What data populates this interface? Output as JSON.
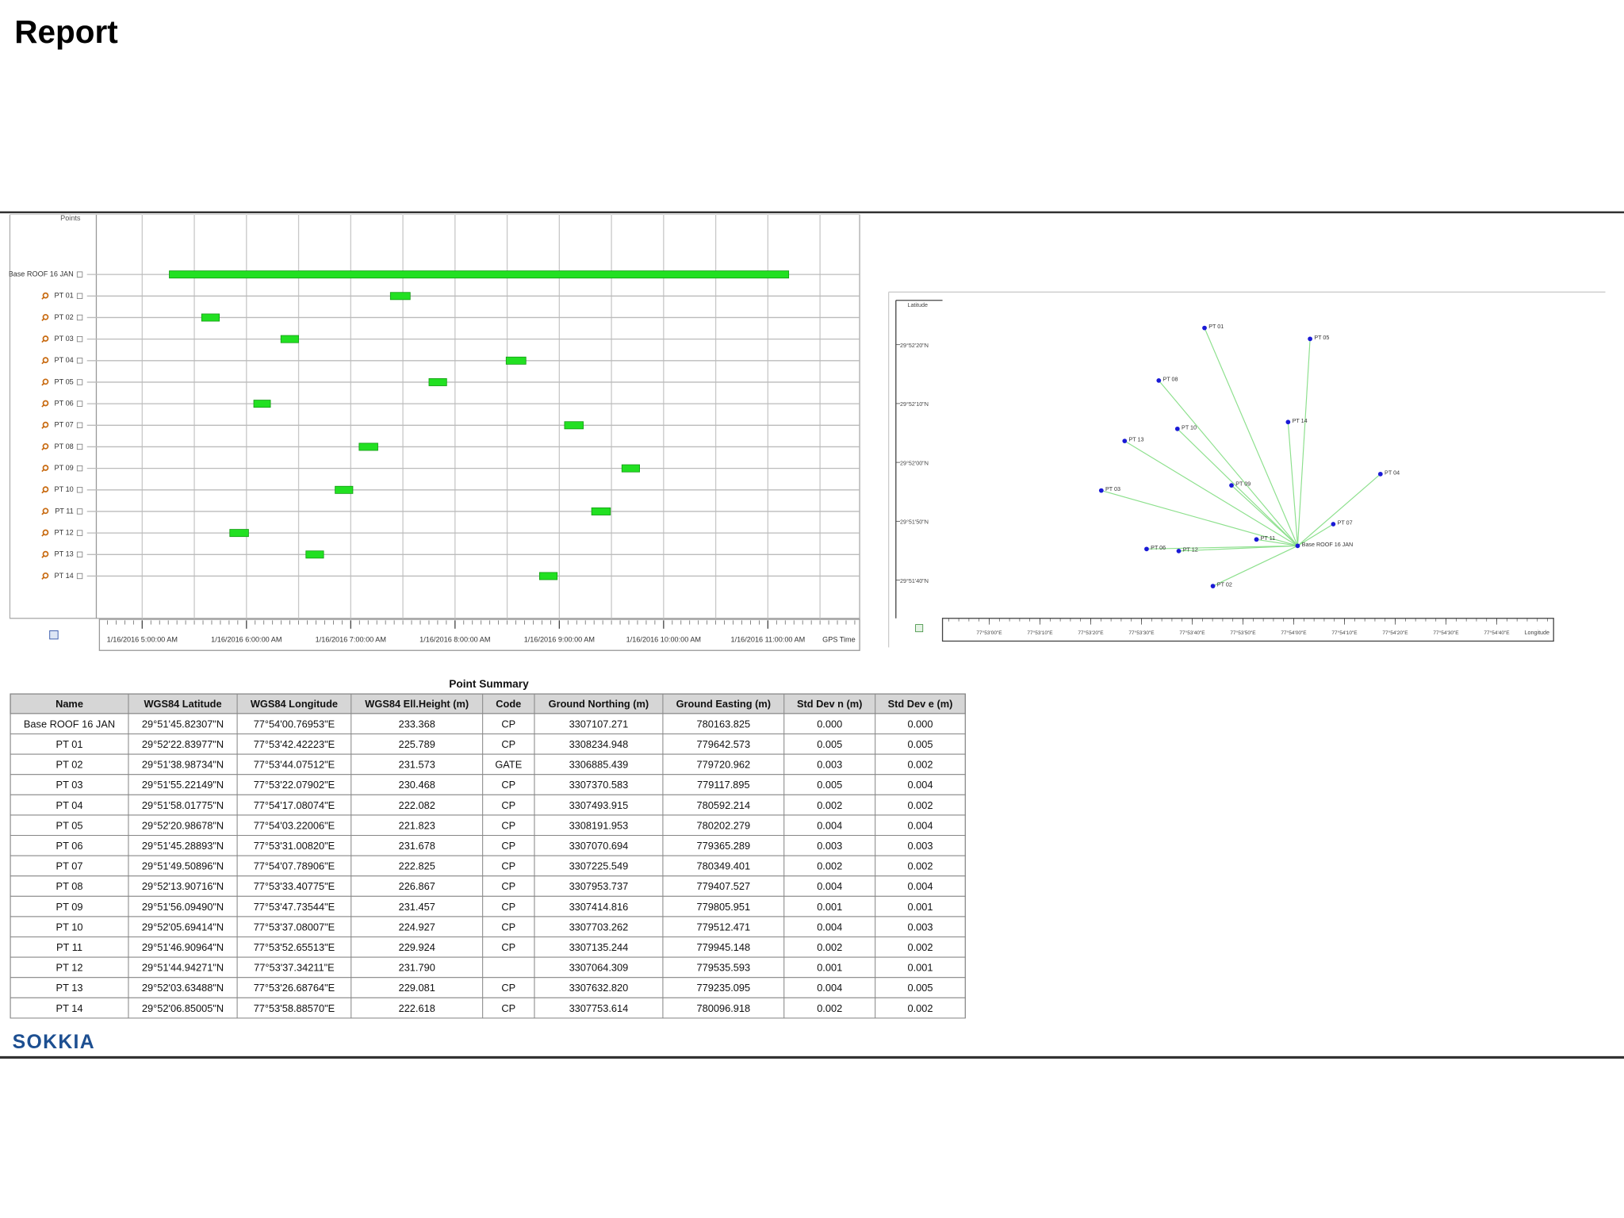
{
  "header": {
    "title": "Report"
  },
  "chart_data": [
    {
      "type": "gantt",
      "y_label": "Points",
      "x_label": "GPS Time",
      "categories": [
        "Base ROOF 16 JAN",
        "PT 01",
        "PT 02",
        "PT 03",
        "PT 04",
        "PT 05",
        "PT 06",
        "PT 07",
        "PT 08",
        "PT 09",
        "PT 10",
        "PT 11",
        "PT 12",
        "PT 13",
        "PT 14"
      ],
      "starts": [
        5.26,
        7.38,
        5.57,
        6.33,
        8.49,
        7.75,
        6.07,
        9.05,
        7.08,
        9.6,
        6.85,
        9.31,
        5.84,
        6.57,
        8.81
      ],
      "ends": [
        11.2,
        7.57,
        5.74,
        6.5,
        8.68,
        7.92,
        6.23,
        9.23,
        7.26,
        9.77,
        7.02,
        9.49,
        6.02,
        6.74,
        8.98
      ],
      "color": "#22e022",
      "xlim": [
        4.59,
        11.88
      ],
      "xticks": [
        {
          "value": 5,
          "label": "1/16/2016 5:00:00 AM"
        },
        {
          "value": 6,
          "label": "1/16/2016 6:00:00 AM"
        },
        {
          "value": 7,
          "label": "1/16/2016 7:00:00 AM"
        },
        {
          "value": 8,
          "label": "1/16/2016 8:00:00 AM"
        },
        {
          "value": 9,
          "label": "1/16/2016 9:00:00 AM"
        },
        {
          "value": 10,
          "label": "1/16/2016 10:00:00 AM"
        },
        {
          "value": 11,
          "label": "1/16/2016 11:00:00 AM"
        }
      ],
      "grid": true
    },
    {
      "type": "scatter",
      "y_label": "Latitude",
      "x_label": "Longitude",
      "labels": [
        "Base ROOF 16 JAN",
        "PT 01",
        "PT 02",
        "PT 03",
        "PT 04",
        "PT 05",
        "PT 06",
        "PT 07",
        "PT 08",
        "PT 09",
        "PT 10",
        "PT 11",
        "PT 12",
        "PT 13",
        "PT 14"
      ],
      "x": [
        77.900214,
        77.895117,
        77.895576,
        77.889466,
        77.904745,
        77.900894,
        77.891946,
        77.902164,
        77.892613,
        77.896593,
        77.893633,
        77.897959,
        77.893706,
        77.890746,
        77.89969
      ],
      "y": [
        29.862729,
        29.873011,
        29.86083,
        29.865339,
        29.866116,
        29.872497,
        29.86258,
        29.863753,
        29.87053,
        29.865582,
        29.868249,
        29.86303,
        29.862484,
        29.867677,
        29.86857
      ],
      "color": "#1a1ad6",
      "line_color": "#8de08d",
      "xlim": [
        77.880889,
        77.914222
      ],
      "ylim": [
        29.85965,
        29.874167
      ],
      "xticks": [
        {
          "value": 77.883333,
          "label": "77°53'00\"E"
        },
        {
          "value": 77.886111,
          "label": "77°53'10\"E"
        },
        {
          "value": 77.888889,
          "label": "77°53'20\"E"
        },
        {
          "value": 77.891667,
          "label": "77°53'30\"E"
        },
        {
          "value": 77.894444,
          "label": "77°53'40\"E"
        },
        {
          "value": 77.897222,
          "label": "77°53'50\"E"
        },
        {
          "value": 77.9,
          "label": "77°54'00\"E"
        },
        {
          "value": 77.902778,
          "label": "77°54'10\"E"
        },
        {
          "value": 77.905556,
          "label": "77°54'20\"E"
        },
        {
          "value": 77.908333,
          "label": "77°54'30\"E"
        },
        {
          "value": 77.911111,
          "label": "77°54'40\"E"
        }
      ],
      "yticks": [
        {
          "value": 29.872222,
          "label": "29°52'20\"N"
        },
        {
          "value": 29.869444,
          "label": "29°52'10\"N"
        },
        {
          "value": 29.866667,
          "label": "29°52'00\"N"
        },
        {
          "value": 29.863889,
          "label": "29°51'50\"N"
        },
        {
          "value": 29.861111,
          "label": "29°51'40\"N"
        }
      ]
    }
  ],
  "table": {
    "title": "Point Summary",
    "columns": [
      "Name",
      "WGS84 Latitude",
      "WGS84 Longitude",
      "WGS84 Ell.Height (m)",
      "Code",
      "Ground Northing (m)",
      "Ground Easting (m)",
      "Std Dev n (m)",
      "Std Dev e (m)"
    ],
    "rows": [
      [
        "Base ROOF 16 JAN",
        "29°51'45.82307\"N",
        "77°54'00.76953\"E",
        "233.368",
        "CP",
        "3307107.271",
        "780163.825",
        "0.000",
        "0.000"
      ],
      [
        "PT 01",
        "29°52'22.83977\"N",
        "77°53'42.42223\"E",
        "225.789",
        "CP",
        "3308234.948",
        "779642.573",
        "0.005",
        "0.005"
      ],
      [
        "PT 02",
        "29°51'38.98734\"N",
        "77°53'44.07512\"E",
        "231.573",
        "GATE",
        "3306885.439",
        "779720.962",
        "0.003",
        "0.002"
      ],
      [
        "PT 03",
        "29°51'55.22149\"N",
        "77°53'22.07902\"E",
        "230.468",
        "CP",
        "3307370.583",
        "779117.895",
        "0.005",
        "0.004"
      ],
      [
        "PT 04",
        "29°51'58.01775\"N",
        "77°54'17.08074\"E",
        "222.082",
        "CP",
        "3307493.915",
        "780592.214",
        "0.002",
        "0.002"
      ],
      [
        "PT 05",
        "29°52'20.98678\"N",
        "77°54'03.22006\"E",
        "221.823",
        "CP",
        "3308191.953",
        "780202.279",
        "0.004",
        "0.004"
      ],
      [
        "PT 06",
        "29°51'45.28893\"N",
        "77°53'31.00820\"E",
        "231.678",
        "CP",
        "3307070.694",
        "779365.289",
        "0.003",
        "0.003"
      ],
      [
        "PT 07",
        "29°51'49.50896\"N",
        "77°54'07.78906\"E",
        "222.825",
        "CP",
        "3307225.549",
        "780349.401",
        "0.002",
        "0.002"
      ],
      [
        "PT 08",
        "29°52'13.90716\"N",
        "77°53'33.40775\"E",
        "226.867",
        "CP",
        "3307953.737",
        "779407.527",
        "0.004",
        "0.004"
      ],
      [
        "PT 09",
        "29°51'56.09490\"N",
        "77°53'47.73544\"E",
        "231.457",
        "CP",
        "3307414.816",
        "779805.951",
        "0.001",
        "0.001"
      ],
      [
        "PT 10",
        "29°52'05.69414\"N",
        "77°53'37.08007\"E",
        "224.927",
        "CP",
        "3307703.262",
        "779512.471",
        "0.004",
        "0.003"
      ],
      [
        "PT 11",
        "29°51'46.90964\"N",
        "77°53'52.65513\"E",
        "229.924",
        "CP",
        "3307135.244",
        "779945.148",
        "0.002",
        "0.002"
      ],
      [
        "PT 12",
        "29°51'44.94271\"N",
        "77°53'37.34211\"E",
        "231.790",
        null,
        "3307064.309",
        "779535.593",
        "0.001",
        "0.001"
      ],
      [
        "PT 13",
        "29°52'03.63488\"N",
        "77°53'26.68764\"E",
        "229.081",
        "CP",
        "3307632.820",
        "779235.095",
        "0.004",
        "0.005"
      ],
      [
        "PT 14",
        "29°52'06.85005\"N",
        "77°53'58.88570\"E",
        "222.618",
        "CP",
        "3307753.614",
        "780096.918",
        "0.002",
        "0.002"
      ]
    ]
  },
  "logo": "SOKKIA"
}
